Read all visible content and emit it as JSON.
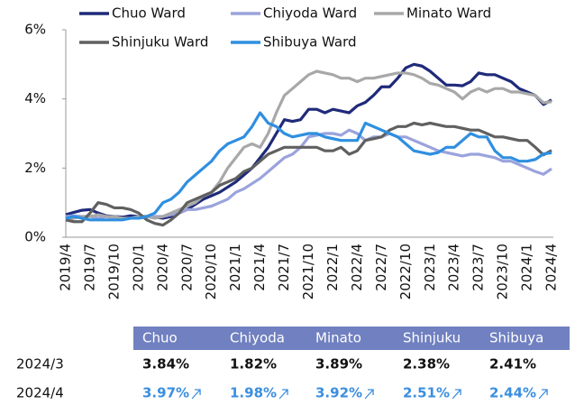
{
  "chart_data": {
    "type": "line",
    "categories": [
      "2019/4",
      null,
      null,
      "2019/7",
      null,
      null,
      "2019/10",
      null,
      null,
      "2020/1",
      null,
      null,
      "2020/4",
      null,
      null,
      "2020/7",
      null,
      null,
      "2020/10",
      null,
      null,
      "2021/1",
      null,
      null,
      "2021/4",
      null,
      null,
      "2021/7",
      null,
      null,
      "2021/10",
      null,
      null,
      "2022/1",
      null,
      null,
      "2022/4",
      null,
      null,
      "2022/7",
      null,
      null,
      "2022/10",
      null,
      null,
      "2023/1",
      null,
      null,
      "2023/4",
      null,
      null,
      "2023/7",
      null,
      null,
      "2023/10",
      null,
      null,
      "2024/1",
      null,
      null,
      "2024/4"
    ],
    "series": [
      {
        "name": "Chuo Ward",
        "color": "#1f2a7a",
        "values": [
          0.65,
          0.72,
          0.78,
          0.8,
          0.7,
          0.62,
          0.6,
          0.58,
          0.62,
          0.6,
          0.6,
          0.58,
          0.55,
          0.6,
          0.7,
          0.8,
          0.95,
          1.1,
          1.2,
          1.3,
          1.45,
          1.6,
          1.8,
          2.0,
          2.3,
          2.6,
          3.0,
          3.4,
          3.35,
          3.4,
          3.7,
          3.7,
          3.6,
          3.7,
          3.65,
          3.6,
          3.8,
          3.9,
          4.1,
          4.35,
          4.35,
          4.6,
          4.9,
          5.0,
          4.95,
          4.8,
          4.6,
          4.4,
          4.4,
          4.38,
          4.5,
          4.75,
          4.7,
          4.7,
          4.6,
          4.5,
          4.3,
          4.2,
          4.1,
          3.84,
          3.97
        ]
      },
      {
        "name": "Chiyoda Ward",
        "color": "#9aa3dc",
        "values": [
          0.6,
          0.62,
          0.6,
          0.6,
          0.55,
          0.6,
          0.55,
          0.52,
          0.55,
          0.55,
          0.58,
          0.6,
          0.6,
          0.65,
          0.7,
          0.8,
          0.8,
          0.85,
          0.9,
          1.0,
          1.1,
          1.3,
          1.4,
          1.55,
          1.7,
          1.9,
          2.1,
          2.3,
          2.4,
          2.6,
          2.9,
          2.95,
          3.0,
          3.0,
          2.95,
          3.1,
          3.0,
          2.8,
          2.9,
          2.9,
          3.0,
          2.9,
          2.9,
          2.8,
          2.7,
          2.6,
          2.5,
          2.45,
          2.4,
          2.35,
          2.4,
          2.4,
          2.35,
          2.3,
          2.2,
          2.2,
          2.1,
          2.0,
          1.9,
          1.82,
          1.98
        ]
      },
      {
        "name": "Minato Ward",
        "color": "#a8a8a8",
        "values": [
          0.5,
          0.55,
          0.6,
          0.6,
          0.65,
          0.6,
          0.6,
          0.55,
          0.55,
          0.6,
          0.6,
          0.55,
          0.6,
          0.7,
          0.8,
          0.9,
          1.0,
          1.2,
          1.3,
          1.6,
          2.0,
          2.3,
          2.6,
          2.7,
          2.6,
          3.0,
          3.6,
          4.1,
          4.3,
          4.5,
          4.7,
          4.8,
          4.75,
          4.7,
          4.6,
          4.6,
          4.5,
          4.6,
          4.6,
          4.65,
          4.7,
          4.75,
          4.75,
          4.7,
          4.6,
          4.45,
          4.4,
          4.3,
          4.2,
          4.0,
          4.2,
          4.3,
          4.2,
          4.3,
          4.3,
          4.2,
          4.2,
          4.15,
          4.1,
          3.89,
          3.92
        ]
      },
      {
        "name": "Shinjuku Ward",
        "color": "#606060",
        "values": [
          0.5,
          0.45,
          0.45,
          0.7,
          1.0,
          0.95,
          0.85,
          0.85,
          0.8,
          0.7,
          0.5,
          0.4,
          0.35,
          0.5,
          0.7,
          1.0,
          1.1,
          1.2,
          1.3,
          1.5,
          1.6,
          1.7,
          1.9,
          2.0,
          2.2,
          2.4,
          2.5,
          2.6,
          2.6,
          2.6,
          2.6,
          2.6,
          2.5,
          2.5,
          2.6,
          2.4,
          2.5,
          2.8,
          2.85,
          2.9,
          3.1,
          3.2,
          3.2,
          3.3,
          3.25,
          3.3,
          3.25,
          3.2,
          3.2,
          3.15,
          3.1,
          3.1,
          3.0,
          2.9,
          2.9,
          2.85,
          2.8,
          2.8,
          2.6,
          2.38,
          2.51
        ]
      },
      {
        "name": "Shibuya Ward",
        "color": "#2f8fe0",
        "values": [
          0.55,
          0.6,
          0.55,
          0.5,
          0.5,
          0.5,
          0.5,
          0.5,
          0.55,
          0.55,
          0.6,
          0.7,
          1.0,
          1.1,
          1.3,
          1.6,
          1.8,
          2.0,
          2.2,
          2.5,
          2.7,
          2.8,
          2.9,
          3.2,
          3.6,
          3.3,
          3.2,
          3.0,
          2.9,
          2.95,
          3.0,
          3.0,
          2.9,
          2.85,
          2.8,
          2.8,
          2.8,
          3.3,
          3.2,
          3.1,
          3.0,
          2.9,
          2.7,
          2.5,
          2.45,
          2.4,
          2.45,
          2.6,
          2.6,
          2.8,
          3.0,
          2.9,
          2.9,
          2.5,
          2.3,
          2.3,
          2.2,
          2.2,
          2.25,
          2.41,
          2.44
        ]
      }
    ],
    "ylim": [
      0,
      6
    ],
    "yticks": [
      {
        "value": 0,
        "label": "0%"
      },
      {
        "value": 2,
        "label": "2%"
      },
      {
        "value": 4,
        "label": "4%"
      },
      {
        "value": 6,
        "label": "6%"
      }
    ],
    "legend": "top"
  },
  "table": {
    "header": [
      "Chuo",
      "Chiyoda",
      "Minato",
      "Shinjuku",
      "Shibuya"
    ],
    "rows": [
      {
        "label": "2024/3",
        "values": [
          "3.84%",
          "1.82%",
          "3.89%",
          "2.38%",
          "2.41%"
        ]
      },
      {
        "label": "2024/4",
        "values": [
          "3.97%",
          "1.98%",
          "3.92%",
          "2.51%",
          "2.44%"
        ]
      }
    ]
  }
}
